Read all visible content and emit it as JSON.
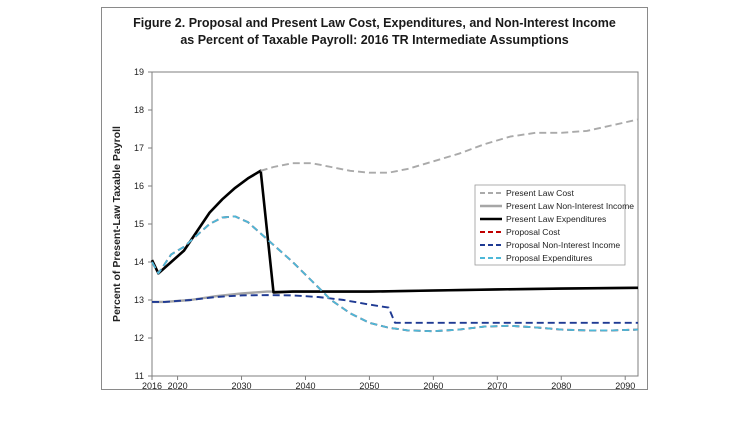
{
  "chart_data": {
    "type": "line",
    "title": "Figure 2.  Proposal and Present Law Cost, Expenditures, and Non-Interest Income",
    "subtitle": "as Percent of Taxable Payroll: 2016 TR Intermediate Assumptions",
    "xlabel": "",
    "ylabel": "Percent of Present-Law Taxable Payroll",
    "xlim": [
      2016,
      2092
    ],
    "ylim": [
      11,
      19
    ],
    "x_ticks": [
      2016,
      2020,
      2030,
      2040,
      2050,
      2060,
      2070,
      2080,
      2090
    ],
    "y_ticks": [
      11,
      12,
      13,
      14,
      15,
      16,
      17,
      18,
      19
    ],
    "grid": false,
    "legend_position": "center-right",
    "series": [
      {
        "name": "Present Law Cost",
        "color": "#aaaaaa",
        "dash": "dashed",
        "points": [
          [
            2033,
            16.4
          ],
          [
            2035,
            16.5
          ],
          [
            2038,
            16.6
          ],
          [
            2041,
            16.6
          ],
          [
            2044,
            16.5
          ],
          [
            2047,
            16.4
          ],
          [
            2050,
            16.35
          ],
          [
            2053,
            16.35
          ],
          [
            2056,
            16.45
          ],
          [
            2060,
            16.65
          ],
          [
            2064,
            16.85
          ],
          [
            2068,
            17.1
          ],
          [
            2072,
            17.3
          ],
          [
            2076,
            17.4
          ],
          [
            2080,
            17.4
          ],
          [
            2084,
            17.45
          ],
          [
            2088,
            17.6
          ],
          [
            2092,
            17.75
          ]
        ]
      },
      {
        "name": "Present Law Non-Interest Income",
        "color": "#a6a6a6",
        "dash": "solid",
        "points": [
          [
            2016,
            12.95
          ],
          [
            2018,
            12.95
          ],
          [
            2022,
            13.0
          ],
          [
            2026,
            13.1
          ],
          [
            2030,
            13.17
          ],
          [
            2034,
            13.22
          ],
          [
            2038,
            13.22
          ],
          [
            2045,
            13.22
          ],
          [
            2050,
            13.22
          ],
          [
            2060,
            13.25
          ],
          [
            2070,
            13.28
          ],
          [
            2080,
            13.3
          ],
          [
            2092,
            13.32
          ]
        ]
      },
      {
        "name": "Present Law Expenditures",
        "color": "#000000",
        "dash": "solid",
        "points": [
          [
            2016,
            14.05
          ],
          [
            2017,
            13.7
          ],
          [
            2019,
            14.0
          ],
          [
            2021,
            14.3
          ],
          [
            2023,
            14.8
          ],
          [
            2025,
            15.3
          ],
          [
            2027,
            15.65
          ],
          [
            2029,
            15.95
          ],
          [
            2031,
            16.2
          ],
          [
            2033,
            16.4
          ],
          [
            2034,
            14.8
          ],
          [
            2035,
            13.2
          ],
          [
            2038,
            13.22
          ],
          [
            2045,
            13.22
          ],
          [
            2050,
            13.22
          ],
          [
            2060,
            13.25
          ],
          [
            2070,
            13.28
          ],
          [
            2080,
            13.3
          ],
          [
            2092,
            13.32
          ]
        ]
      },
      {
        "name": "Proposal Cost",
        "color": "#c00000",
        "dash": "dashed",
        "points": [
          [
            2016,
            14.0
          ],
          [
            2017,
            13.7
          ],
          [
            2019,
            14.2
          ],
          [
            2021,
            14.4
          ],
          [
            2023,
            14.7
          ],
          [
            2025,
            15.0
          ],
          [
            2027,
            15.17
          ],
          [
            2029,
            15.2
          ],
          [
            2031,
            15.05
          ],
          [
            2033,
            14.75
          ],
          [
            2035,
            14.45
          ],
          [
            2038,
            14.0
          ],
          [
            2041,
            13.5
          ],
          [
            2044,
            13.0
          ],
          [
            2047,
            12.65
          ],
          [
            2050,
            12.4
          ],
          [
            2053,
            12.27
          ],
          [
            2056,
            12.2
          ],
          [
            2060,
            12.18
          ],
          [
            2064,
            12.22
          ],
          [
            2068,
            12.3
          ],
          [
            2072,
            12.32
          ],
          [
            2076,
            12.28
          ],
          [
            2080,
            12.22
          ],
          [
            2084,
            12.2
          ],
          [
            2088,
            12.2
          ],
          [
            2092,
            12.22
          ]
        ]
      },
      {
        "name": "Proposal Non-Interest Income",
        "color": "#1f3a93",
        "dash": "dashed",
        "points": [
          [
            2016,
            12.95
          ],
          [
            2018,
            12.95
          ],
          [
            2022,
            13.0
          ],
          [
            2026,
            13.08
          ],
          [
            2030,
            13.12
          ],
          [
            2034,
            13.13
          ],
          [
            2038,
            13.12
          ],
          [
            2042,
            13.08
          ],
          [
            2046,
            13.0
          ],
          [
            2050,
            12.88
          ],
          [
            2053,
            12.8
          ],
          [
            2054,
            12.4
          ],
          [
            2060,
            12.4
          ],
          [
            2070,
            12.4
          ],
          [
            2080,
            12.4
          ],
          [
            2092,
            12.4
          ]
        ]
      },
      {
        "name": "Proposal Expenditures",
        "color": "#4db8d8",
        "dash": "dashed",
        "points": [
          [
            2016,
            14.0
          ],
          [
            2017,
            13.7
          ],
          [
            2019,
            14.2
          ],
          [
            2021,
            14.4
          ],
          [
            2023,
            14.7
          ],
          [
            2025,
            15.0
          ],
          [
            2027,
            15.17
          ],
          [
            2029,
            15.2
          ],
          [
            2031,
            15.05
          ],
          [
            2033,
            14.75
          ],
          [
            2035,
            14.45
          ],
          [
            2038,
            14.0
          ],
          [
            2041,
            13.5
          ],
          [
            2044,
            13.0
          ],
          [
            2047,
            12.65
          ],
          [
            2050,
            12.4
          ],
          [
            2053,
            12.27
          ],
          [
            2056,
            12.2
          ],
          [
            2060,
            12.18
          ],
          [
            2064,
            12.22
          ],
          [
            2068,
            12.3
          ],
          [
            2072,
            12.32
          ],
          [
            2076,
            12.28
          ],
          [
            2080,
            12.22
          ],
          [
            2084,
            12.2
          ],
          [
            2088,
            12.2
          ],
          [
            2092,
            12.22
          ]
        ]
      }
    ]
  }
}
